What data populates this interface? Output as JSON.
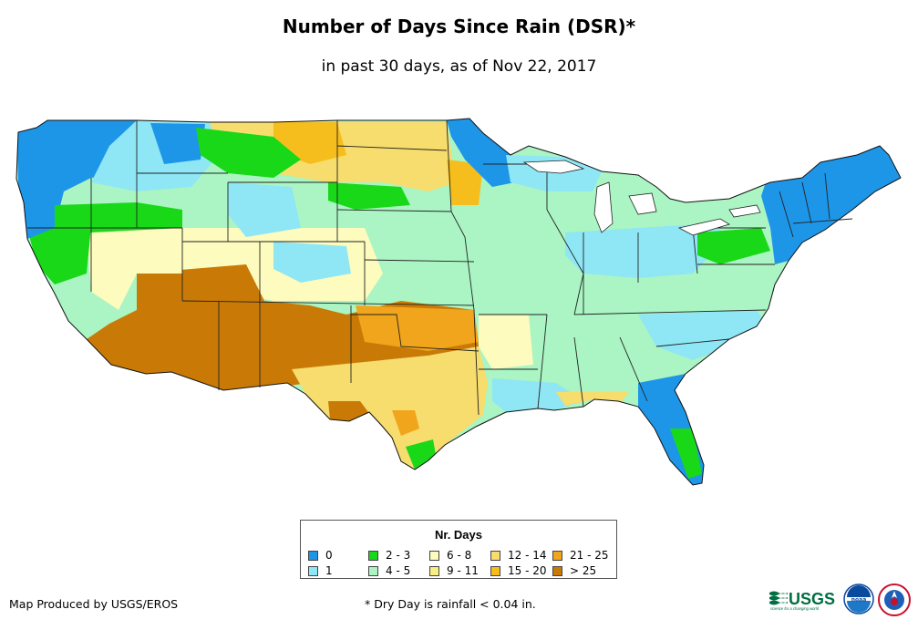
{
  "title": "Number of Days Since Rain (DSR)*",
  "subtitle": "in past 30 days, as of Nov 22, 2017",
  "legend": {
    "title": "Nr. Days",
    "items": [
      {
        "label": "0",
        "color": "#1e96e8"
      },
      {
        "label": "1",
        "color": "#8fe6f5"
      },
      {
        "label": "2 - 3",
        "color": "#18d818"
      },
      {
        "label": "4 - 5",
        "color": "#aaf5c3"
      },
      {
        "label": "6 - 8",
        "color": "#fdfbbe"
      },
      {
        "label": "9 - 11",
        "color": "#f7ee84"
      },
      {
        "label": "12 - 14",
        "color": "#f7dc6e"
      },
      {
        "label": "15 - 20",
        "color": "#f5be1c"
      },
      {
        "label": "21 - 25",
        "color": "#f0a51c"
      },
      {
        "label": "> 25",
        "color": "#c97a06"
      }
    ]
  },
  "footer": {
    "credit": "Map Produced by USGS/EROS",
    "footnote": "* Dry Day is rainfall < 0.04 in."
  },
  "logos": {
    "usgs": "USGS",
    "usgs_tagline": "science for a changing world",
    "noaa": "noaa"
  }
}
